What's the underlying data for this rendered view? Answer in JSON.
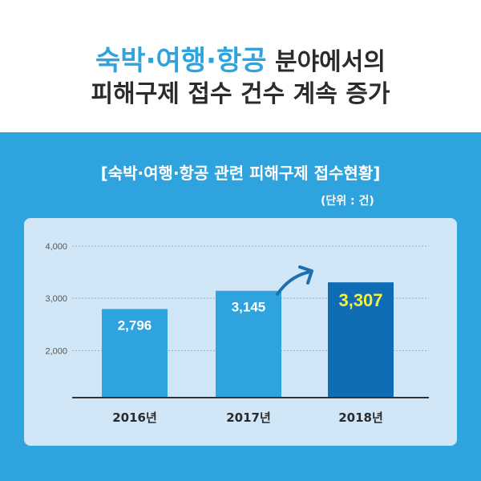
{
  "header": {
    "title_highlight": "숙박·여행·항공",
    "title_rest": " 분야에서의",
    "title_line2": "피해구제 접수 건수 계속 증가"
  },
  "colors": {
    "accent": "#2ea3dd",
    "bar": "#2ea3dd",
    "bar_highlight": "#0f6db5",
    "highlight_label": "#f5f03a",
    "panel": "#d1e6f6"
  },
  "chart_data": {
    "type": "bar",
    "title": "[숙박·여행·항공 관련 피해구제 접수현황]",
    "unit": "(단위 : 건)",
    "categories": [
      "2016년",
      "2017년",
      "2018년"
    ],
    "values": [
      2796,
      3145,
      3307
    ],
    "value_labels": [
      "2,796",
      "3,145",
      "3,307"
    ],
    "yticks": [
      2000,
      3000,
      4000
    ],
    "ytick_labels": [
      "2,000",
      "3,000",
      "4,000"
    ],
    "ylim": [
      1100,
      4000
    ],
    "grid": true,
    "xlabel": "",
    "ylabel": "",
    "annotation": "increase-arrow"
  }
}
